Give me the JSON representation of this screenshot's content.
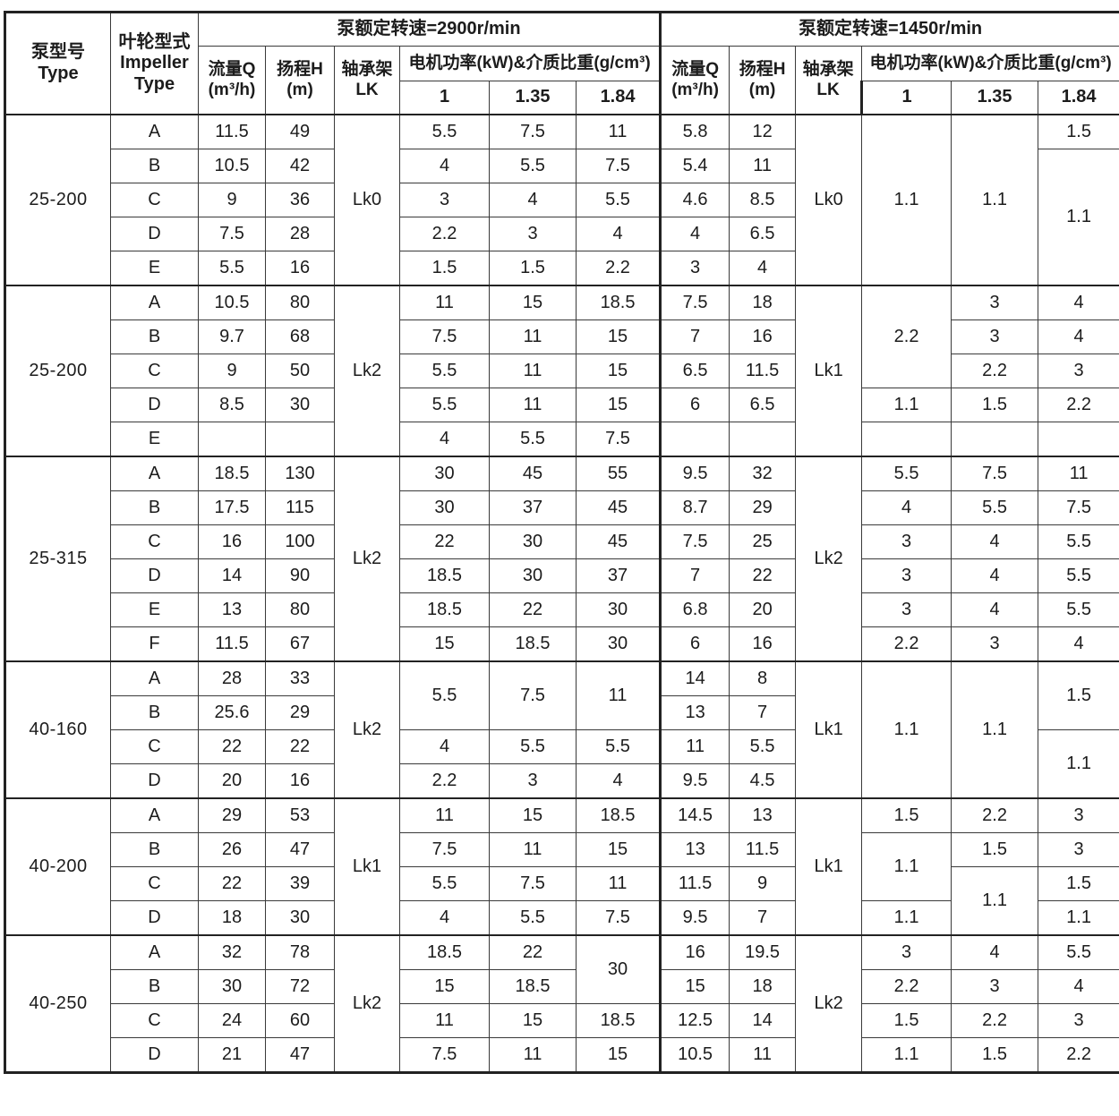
{
  "page": {
    "background": "#ffffff",
    "text_color": "#1c1c1c",
    "grid_line_color": "#3a3a3a",
    "thick_line_color": "#222222"
  },
  "table": {
    "header": {
      "type_zh": "泵型号",
      "type_en": "Type",
      "impeller_l1": "叶轮型式",
      "impeller_l2": "Impeller",
      "impeller_l3": "Type",
      "speed_2900": "泵额定转速=2900r/min",
      "speed_1450": "泵额定转速=1450r/min",
      "flow_l1": "流量Q",
      "flow_l2": "(m³/h)",
      "head_l1": "扬程H",
      "head_l2": "(m)",
      "bearing_l1": "轴承架",
      "bearing_l2": "LK",
      "power_label": "电机功率(kW)&介质比重(g/cm³)",
      "densities": [
        "1",
        "1.35",
        "1.84"
      ]
    },
    "body": [
      [
        {
          "t": "25-200",
          "rs": 5
        },
        {
          "t": "A"
        },
        {
          "t": "11.5"
        },
        {
          "t": "49"
        },
        {
          "t": "Lk0",
          "rs": 5
        },
        {
          "t": "5.5"
        },
        {
          "t": "7.5"
        },
        {
          "t": "11"
        },
        {
          "t": "5.8"
        },
        {
          "t": "12"
        },
        {
          "t": "Lk0",
          "rs": 5
        },
        {
          "t": "1.1",
          "rs": 5
        },
        {
          "t": "1.1",
          "rs": 5
        },
        {
          "t": "1.5"
        }
      ],
      [
        {
          "t": "B"
        },
        {
          "t": "10.5"
        },
        {
          "t": "42"
        },
        {
          "t": "4"
        },
        {
          "t": "5.5"
        },
        {
          "t": "7.5"
        },
        {
          "t": "5.4"
        },
        {
          "t": "11"
        },
        {
          "t": "1.1",
          "rs": 4
        }
      ],
      [
        {
          "t": "C"
        },
        {
          "t": "9"
        },
        {
          "t": "36"
        },
        {
          "t": "3"
        },
        {
          "t": "4"
        },
        {
          "t": "5.5"
        },
        {
          "t": "4.6"
        },
        {
          "t": "8.5"
        }
      ],
      [
        {
          "t": "D"
        },
        {
          "t": "7.5"
        },
        {
          "t": "28"
        },
        {
          "t": "2.2"
        },
        {
          "t": "3"
        },
        {
          "t": "4"
        },
        {
          "t": "4"
        },
        {
          "t": "6.5"
        }
      ],
      [
        {
          "t": "E"
        },
        {
          "t": "5.5"
        },
        {
          "t": "16"
        },
        {
          "t": "1.5"
        },
        {
          "t": "1.5"
        },
        {
          "t": "2.2"
        },
        {
          "t": "3"
        },
        {
          "t": "4"
        }
      ],
      [
        {
          "t": "25-200",
          "rs": 5
        },
        {
          "t": "A"
        },
        {
          "t": "10.5"
        },
        {
          "t": "80"
        },
        {
          "t": "Lk2",
          "rs": 5
        },
        {
          "t": "11"
        },
        {
          "t": "15"
        },
        {
          "t": "18.5"
        },
        {
          "t": "7.5"
        },
        {
          "t": "18"
        },
        {
          "t": "Lk1",
          "rs": 5
        },
        {
          "t": "2.2",
          "rs": 3
        },
        {
          "t": "3"
        },
        {
          "t": "4"
        }
      ],
      [
        {
          "t": "B"
        },
        {
          "t": "9.7"
        },
        {
          "t": "68"
        },
        {
          "t": "7.5"
        },
        {
          "t": "11"
        },
        {
          "t": "15"
        },
        {
          "t": "7"
        },
        {
          "t": "16"
        },
        {
          "t": "3"
        },
        {
          "t": "4"
        }
      ],
      [
        {
          "t": "C"
        },
        {
          "t": "9"
        },
        {
          "t": "50"
        },
        {
          "t": "5.5"
        },
        {
          "t": "11"
        },
        {
          "t": "15"
        },
        {
          "t": "6.5"
        },
        {
          "t": "11.5"
        },
        {
          "t": "2.2"
        },
        {
          "t": "3"
        }
      ],
      [
        {
          "t": "D"
        },
        {
          "t": "8.5"
        },
        {
          "t": "30"
        },
        {
          "t": "5.5"
        },
        {
          "t": "11"
        },
        {
          "t": "15"
        },
        {
          "t": "6"
        },
        {
          "t": "6.5"
        },
        {
          "t": "1.1"
        },
        {
          "t": "1.5"
        },
        {
          "t": "2.2"
        }
      ],
      [
        {
          "t": "E"
        },
        {
          "t": ""
        },
        {
          "t": ""
        },
        {
          "t": "4"
        },
        {
          "t": "5.5"
        },
        {
          "t": "7.5"
        },
        {
          "t": ""
        },
        {
          "t": ""
        },
        {
          "t": ""
        },
        {
          "t": ""
        },
        {
          "t": ""
        }
      ],
      [
        {
          "t": "25-315",
          "rs": 6
        },
        {
          "t": "A"
        },
        {
          "t": "18.5"
        },
        {
          "t": "130"
        },
        {
          "t": "Lk2",
          "rs": 6
        },
        {
          "t": "30"
        },
        {
          "t": "45"
        },
        {
          "t": "55"
        },
        {
          "t": "9.5"
        },
        {
          "t": "32"
        },
        {
          "t": "Lk2",
          "rs": 6
        },
        {
          "t": "5.5"
        },
        {
          "t": "7.5"
        },
        {
          "t": "11"
        }
      ],
      [
        {
          "t": "B"
        },
        {
          "t": "17.5"
        },
        {
          "t": "115"
        },
        {
          "t": "30"
        },
        {
          "t": "37"
        },
        {
          "t": "45"
        },
        {
          "t": "8.7"
        },
        {
          "t": "29"
        },
        {
          "t": "4"
        },
        {
          "t": "5.5"
        },
        {
          "t": "7.5"
        }
      ],
      [
        {
          "t": "C"
        },
        {
          "t": "16"
        },
        {
          "t": "100"
        },
        {
          "t": "22"
        },
        {
          "t": "30"
        },
        {
          "t": "45"
        },
        {
          "t": "7.5"
        },
        {
          "t": "25"
        },
        {
          "t": "3"
        },
        {
          "t": "4"
        },
        {
          "t": "5.5"
        }
      ],
      [
        {
          "t": "D"
        },
        {
          "t": "14"
        },
        {
          "t": "90"
        },
        {
          "t": "18.5"
        },
        {
          "t": "30"
        },
        {
          "t": "37"
        },
        {
          "t": "7"
        },
        {
          "t": "22"
        },
        {
          "t": "3"
        },
        {
          "t": "4"
        },
        {
          "t": "5.5"
        }
      ],
      [
        {
          "t": "E"
        },
        {
          "t": "13"
        },
        {
          "t": "80"
        },
        {
          "t": "18.5"
        },
        {
          "t": "22"
        },
        {
          "t": "30"
        },
        {
          "t": "6.8"
        },
        {
          "t": "20"
        },
        {
          "t": "3"
        },
        {
          "t": "4"
        },
        {
          "t": "5.5"
        }
      ],
      [
        {
          "t": "F"
        },
        {
          "t": "11.5"
        },
        {
          "t": "67"
        },
        {
          "t": "15"
        },
        {
          "t": "18.5"
        },
        {
          "t": "30"
        },
        {
          "t": "6"
        },
        {
          "t": "16"
        },
        {
          "t": "2.2"
        },
        {
          "t": "3"
        },
        {
          "t": "4"
        }
      ],
      [
        {
          "t": "40-160",
          "rs": 4
        },
        {
          "t": "A"
        },
        {
          "t": "28"
        },
        {
          "t": "33"
        },
        {
          "t": "Lk2",
          "rs": 4
        },
        {
          "t": "5.5",
          "rs": 2
        },
        {
          "t": "7.5",
          "rs": 2
        },
        {
          "t": "11",
          "rs": 2
        },
        {
          "t": "14"
        },
        {
          "t": "8"
        },
        {
          "t": "Lk1",
          "rs": 4
        },
        {
          "t": "1.1",
          "rs": 4
        },
        {
          "t": "1.1",
          "rs": 4
        },
        {
          "t": "1.5",
          "rs": 2
        }
      ],
      [
        {
          "t": "B"
        },
        {
          "t": "25.6"
        },
        {
          "t": "29"
        },
        {
          "t": "13"
        },
        {
          "t": "7"
        }
      ],
      [
        {
          "t": "C"
        },
        {
          "t": "22"
        },
        {
          "t": "22"
        },
        {
          "t": "4"
        },
        {
          "t": "5.5"
        },
        {
          "t": "5.5"
        },
        {
          "t": "11"
        },
        {
          "t": "5.5"
        },
        {
          "t": "1.1",
          "rs": 2
        }
      ],
      [
        {
          "t": "D"
        },
        {
          "t": "20"
        },
        {
          "t": "16"
        },
        {
          "t": "2.2"
        },
        {
          "t": "3"
        },
        {
          "t": "4"
        },
        {
          "t": "9.5"
        },
        {
          "t": "4.5"
        }
      ],
      [
        {
          "t": "40-200",
          "rs": 4
        },
        {
          "t": "A"
        },
        {
          "t": "29"
        },
        {
          "t": "53"
        },
        {
          "t": "Lk1",
          "rs": 4
        },
        {
          "t": "11"
        },
        {
          "t": "15"
        },
        {
          "t": "18.5"
        },
        {
          "t": "14.5"
        },
        {
          "t": "13"
        },
        {
          "t": "Lk1",
          "rs": 4
        },
        {
          "t": "1.5"
        },
        {
          "t": "2.2"
        },
        {
          "t": "3"
        }
      ],
      [
        {
          "t": "B"
        },
        {
          "t": "26"
        },
        {
          "t": "47"
        },
        {
          "t": "7.5"
        },
        {
          "t": "11"
        },
        {
          "t": "15"
        },
        {
          "t": "13"
        },
        {
          "t": "11.5"
        },
        {
          "t": "1.1",
          "rs": 2
        },
        {
          "t": "1.5"
        },
        {
          "t": "3"
        }
      ],
      [
        {
          "t": "C"
        },
        {
          "t": "22"
        },
        {
          "t": "39"
        },
        {
          "t": "5.5"
        },
        {
          "t": "7.5"
        },
        {
          "t": "11"
        },
        {
          "t": "11.5"
        },
        {
          "t": "9"
        },
        {
          "t": "1.1",
          "rs": 2
        },
        {
          "t": "1.5"
        }
      ],
      [
        {
          "t": "D"
        },
        {
          "t": "18"
        },
        {
          "t": "30"
        },
        {
          "t": "4"
        },
        {
          "t": "5.5"
        },
        {
          "t": "7.5"
        },
        {
          "t": "9.5"
        },
        {
          "t": "7"
        },
        {
          "t": "1.1"
        },
        {
          "t": "1.1"
        }
      ],
      [
        {
          "t": "40-250",
          "rs": 4
        },
        {
          "t": "A"
        },
        {
          "t": "32"
        },
        {
          "t": "78"
        },
        {
          "t": "Lk2",
          "rs": 4
        },
        {
          "t": "18.5"
        },
        {
          "t": "22"
        },
        {
          "t": "30",
          "rs": 2
        },
        {
          "t": "16"
        },
        {
          "t": "19.5"
        },
        {
          "t": "Lk2",
          "rs": 4
        },
        {
          "t": "3"
        },
        {
          "t": "4"
        },
        {
          "t": "5.5"
        }
      ],
      [
        {
          "t": "B"
        },
        {
          "t": "30"
        },
        {
          "t": "72"
        },
        {
          "t": "15"
        },
        {
          "t": "18.5"
        },
        {
          "t": "15"
        },
        {
          "t": "18"
        },
        {
          "t": "2.2"
        },
        {
          "t": "3"
        },
        {
          "t": "4"
        }
      ],
      [
        {
          "t": "C"
        },
        {
          "t": "24"
        },
        {
          "t": "60"
        },
        {
          "t": "11"
        },
        {
          "t": "15"
        },
        {
          "t": "18.5"
        },
        {
          "t": "12.5"
        },
        {
          "t": "14"
        },
        {
          "t": "1.5"
        },
        {
          "t": "2.2"
        },
        {
          "t": "3"
        }
      ],
      [
        {
          "t": "D"
        },
        {
          "t": "21"
        },
        {
          "t": "47"
        },
        {
          "t": "7.5"
        },
        {
          "t": "11"
        },
        {
          "t": "15"
        },
        {
          "t": "10.5"
        },
        {
          "t": "11"
        },
        {
          "t": "1.1"
        },
        {
          "t": "1.5"
        },
        {
          "t": "2.2"
        }
      ]
    ]
  }
}
